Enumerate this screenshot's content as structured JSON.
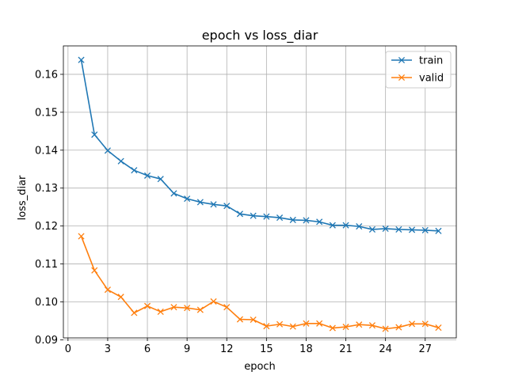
{
  "chart_data": {
    "type": "line",
    "title": "epoch vs loss_diar",
    "xlabel": "epoch",
    "ylabel": "loss_diar",
    "xlim": [
      -0.35,
      29.35
    ],
    "ylim": [
      0.0905,
      0.1675
    ],
    "xticks": [
      0,
      3,
      6,
      9,
      12,
      15,
      18,
      21,
      24,
      27
    ],
    "xtick_labels": [
      "0",
      "3",
      "6",
      "9",
      "12",
      "15",
      "18",
      "21",
      "24",
      "27"
    ],
    "yticks": [
      0.09,
      0.1,
      0.11,
      0.12,
      0.13,
      0.14,
      0.15,
      0.16
    ],
    "ytick_labels": [
      "0.09",
      "0.10",
      "0.11",
      "0.12",
      "0.13",
      "0.14",
      "0.15",
      "0.16"
    ],
    "grid": true,
    "legend_position": "top-right",
    "x": [
      1,
      2,
      3,
      4,
      5,
      6,
      7,
      8,
      9,
      10,
      11,
      12,
      13,
      14,
      15,
      16,
      17,
      18,
      19,
      20,
      21,
      22,
      23,
      24,
      25,
      26,
      27,
      28
    ],
    "series": [
      {
        "name": "train",
        "color": "#1f77b4",
        "marker": "x",
        "values": [
          0.1638,
          0.1441,
          0.1399,
          0.1371,
          0.1347,
          0.1333,
          0.1324,
          0.1286,
          0.1272,
          0.1263,
          0.1257,
          0.1253,
          0.1232,
          0.1227,
          0.1225,
          0.1222,
          0.1216,
          0.1215,
          0.1211,
          0.1202,
          0.1202,
          0.1199,
          0.1191,
          0.1193,
          0.1191,
          0.119,
          0.1189,
          0.1187
        ]
      },
      {
        "name": "valid",
        "color": "#ff7f0e",
        "marker": "x",
        "values": [
          0.1173,
          0.1083,
          0.1032,
          0.1013,
          0.0971,
          0.0989,
          0.0974,
          0.0986,
          0.0984,
          0.0979,
          0.1001,
          0.0986,
          0.0954,
          0.0953,
          0.0936,
          0.0941,
          0.0935,
          0.0943,
          0.0943,
          0.0931,
          0.0934,
          0.094,
          0.0938,
          0.0929,
          0.0933,
          0.0942,
          0.0942,
          0.0932
        ]
      }
    ]
  }
}
